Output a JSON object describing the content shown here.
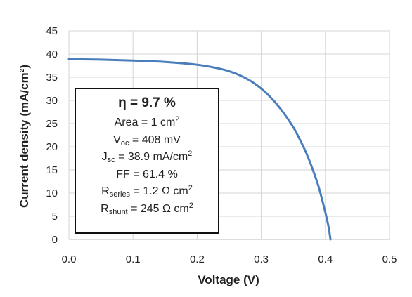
{
  "chart_data": {
    "type": "line",
    "xlabel": "Voltage (V)",
    "ylabel": "Current density (mA/cm²)",
    "xlim": [
      0,
      0.5
    ],
    "ylim": [
      0,
      45
    ],
    "x_ticks": [
      "0.0",
      "0.1",
      "0.2",
      "0.3",
      "0.4",
      "0.5"
    ],
    "y_ticks": [
      "0",
      "5",
      "10",
      "15",
      "20",
      "25",
      "30",
      "35",
      "40",
      "45"
    ],
    "grid": true,
    "line_color": "#4a7ebb",
    "series": [
      {
        "x": [
          0.0,
          0.05,
          0.1,
          0.15,
          0.2,
          0.23,
          0.25,
          0.27,
          0.29,
          0.31,
          0.33,
          0.35,
          0.36,
          0.37,
          0.38,
          0.39,
          0.4,
          0.405,
          0.408
        ],
        "y": [
          38.9,
          38.8,
          38.6,
          38.3,
          37.7,
          37.0,
          36.3,
          35.2,
          33.6,
          31.3,
          28.2,
          24.2,
          21.6,
          18.7,
          15.2,
          11.1,
          5.8,
          2.7,
          0
        ]
      }
    ],
    "annotation": {
      "eta": {
        "prefix": "η = ",
        "value": "9.7 %"
      },
      "area": {
        "label": "Area = 1 cm",
        "sup": "2"
      },
      "voc": {
        "sym": "V",
        "sub": "oc",
        "rest": " = 408 mV"
      },
      "jsc": {
        "sym": "J",
        "sub": "sc",
        "rest": " = 38.9 mA/cm",
        "sup": "2"
      },
      "ff": {
        "label": "FF = 61.4 %"
      },
      "rseries": {
        "sym": "R",
        "sub": "series",
        "rest": " =  1.2 Ω cm",
        "sup": "2"
      },
      "rshunt": {
        "sym": "R",
        "sub": "shunt",
        "rest": " = 245 Ω cm",
        "sup": "2"
      }
    }
  }
}
